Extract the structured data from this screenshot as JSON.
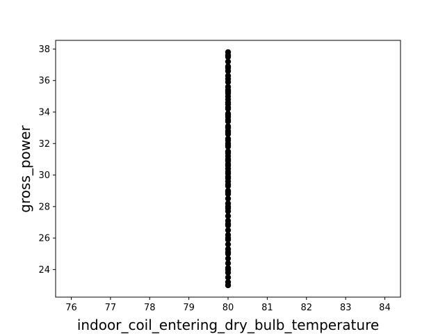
{
  "chart_data": {
    "type": "scatter",
    "xlabel": "indoor_coil_entering_dry_bulb_temperature",
    "ylabel": "gross_power",
    "xlim": [
      75.6,
      84.4
    ],
    "ylim": [
      22.25,
      38.55
    ],
    "x_ticks": [
      76,
      77,
      78,
      79,
      80,
      81,
      82,
      83,
      84
    ],
    "y_ticks": [
      24,
      26,
      28,
      30,
      32,
      34,
      36,
      38
    ],
    "marker_color": "#000000",
    "grid": false,
    "series": [
      {
        "x": [
          80,
          80,
          80,
          80,
          80,
          80,
          80,
          80,
          80,
          80,
          80,
          80,
          80,
          80,
          80,
          80,
          80,
          80,
          80,
          80,
          80,
          80,
          80,
          80,
          80,
          80,
          80,
          80,
          80,
          80,
          80,
          80,
          80,
          80,
          80,
          80,
          80,
          80,
          80,
          80,
          80,
          80,
          80,
          80,
          80,
          80,
          80,
          80,
          80,
          80,
          80,
          80,
          80,
          80,
          80,
          80,
          80,
          80,
          80,
          80,
          80,
          80,
          80,
          80,
          80,
          80,
          80,
          80,
          80,
          80,
          80,
          80,
          80,
          80,
          80,
          80,
          80,
          80
        ],
        "y": [
          23.0,
          23.5,
          23.8,
          24.1,
          24.4,
          24.7,
          25.0,
          25.3,
          25.6,
          25.9,
          26.2,
          26.5,
          26.8,
          27.1,
          27.4,
          27.7,
          28.0,
          28.2,
          28.5,
          28.8,
          29.0,
          29.3,
          29.6,
          29.9,
          30.1,
          30.4,
          30.7,
          30.9,
          31.2,
          31.5,
          31.8,
          32.0,
          32.3,
          32.6,
          32.8,
          33.1,
          33.4,
          33.7,
          33.9,
          34.2,
          34.5,
          34.8,
          35.0,
          35.3,
          35.6,
          35.9,
          36.3,
          36.6,
          36.9,
          37.2,
          37.5,
          37.8,
          23.2,
          24.0,
          25.1,
          26.0,
          26.9,
          27.9,
          28.9,
          29.8,
          30.6,
          31.4,
          32.2,
          33.0,
          33.8,
          34.6,
          35.4,
          36.1,
          36.8,
          37.6,
          29.4,
          30.2,
          31.0,
          31.9,
          32.7,
          33.5,
          34.3,
          35.2
        ]
      }
    ]
  }
}
